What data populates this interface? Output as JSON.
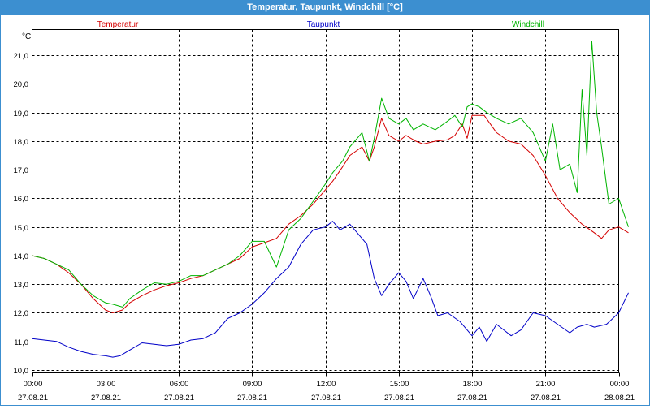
{
  "window": {
    "title": "Temperatur, Taupunkt, Windchill [°C]"
  },
  "chart_data": {
    "type": "line",
    "title": "Temperatur, Taupunkt, Windchill [°C]",
    "ylabel": "°C",
    "ylim": [
      9.9,
      21.9
    ],
    "xlim": [
      0,
      24
    ],
    "grid": true,
    "legend_placement": "top",
    "x_ticks": [
      {
        "time": "00:00",
        "date": "27.08.21",
        "h": 0
      },
      {
        "time": "03:00",
        "date": "27.08.21",
        "h": 3
      },
      {
        "time": "06:00",
        "date": "27.08.21",
        "h": 6
      },
      {
        "time": "09:00",
        "date": "27.08.21",
        "h": 9
      },
      {
        "time": "12:00",
        "date": "27.08.21",
        "h": 12
      },
      {
        "time": "15:00",
        "date": "27.08.21",
        "h": 15
      },
      {
        "time": "18:00",
        "date": "27.08.21",
        "h": 18
      },
      {
        "time": "21:00",
        "date": "27.08.21",
        "h": 21
      },
      {
        "time": "00:00",
        "date": "28.08.21",
        "h": 24
      }
    ],
    "y_ticks": [
      "10,0",
      "11,0",
      "12,0",
      "13,0",
      "14,0",
      "15,0",
      "16,0",
      "17,0",
      "18,0",
      "19,0",
      "20,0",
      "21,0"
    ],
    "series": [
      {
        "name": "Temperatur",
        "color": "#d40000",
        "points": [
          [
            0,
            14.0
          ],
          [
            0.5,
            13.9
          ],
          [
            1,
            13.7
          ],
          [
            1.5,
            13.4
          ],
          [
            2,
            13.0
          ],
          [
            2.5,
            12.5
          ],
          [
            3,
            12.1
          ],
          [
            3.3,
            12.0
          ],
          [
            3.7,
            12.1
          ],
          [
            4,
            12.35
          ],
          [
            4.5,
            12.6
          ],
          [
            5,
            12.8
          ],
          [
            5.5,
            12.95
          ],
          [
            6,
            13.05
          ],
          [
            6.5,
            13.2
          ],
          [
            7,
            13.3
          ],
          [
            7.5,
            13.5
          ],
          [
            8,
            13.7
          ],
          [
            8.5,
            13.9
          ],
          [
            9,
            14.3
          ],
          [
            9.5,
            14.45
          ],
          [
            10,
            14.6
          ],
          [
            10.5,
            15.1
          ],
          [
            11,
            15.4
          ],
          [
            11.5,
            15.8
          ],
          [
            12,
            16.3
          ],
          [
            12.3,
            16.6
          ],
          [
            12.7,
            17.1
          ],
          [
            13,
            17.5
          ],
          [
            13.5,
            17.8
          ],
          [
            13.8,
            17.3
          ],
          [
            14,
            17.8
          ],
          [
            14.3,
            18.8
          ],
          [
            14.6,
            18.2
          ],
          [
            15,
            18.0
          ],
          [
            15.3,
            18.2
          ],
          [
            15.7,
            18.0
          ],
          [
            16,
            17.9
          ],
          [
            16.5,
            18.0
          ],
          [
            17,
            18.05
          ],
          [
            17.3,
            18.2
          ],
          [
            17.6,
            18.6
          ],
          [
            17.8,
            18.1
          ],
          [
            18,
            18.9
          ],
          [
            18.5,
            18.9
          ],
          [
            19,
            18.3
          ],
          [
            19.5,
            18.0
          ],
          [
            20,
            17.9
          ],
          [
            20.5,
            17.5
          ],
          [
            21,
            16.8
          ],
          [
            21.5,
            16.0
          ],
          [
            22,
            15.5
          ],
          [
            22.5,
            15.1
          ],
          [
            23,
            14.8
          ],
          [
            23.3,
            14.6
          ],
          [
            23.6,
            14.9
          ],
          [
            24,
            15.0
          ],
          [
            24.4,
            14.8
          ]
        ]
      },
      {
        "name": "Taupunkt",
        "color": "#0000c8",
        "points": [
          [
            0,
            11.1
          ],
          [
            0.5,
            11.05
          ],
          [
            1,
            11.0
          ],
          [
            1.5,
            10.8
          ],
          [
            2,
            10.65
          ],
          [
            2.5,
            10.55
          ],
          [
            3,
            10.5
          ],
          [
            3.3,
            10.45
          ],
          [
            3.6,
            10.5
          ],
          [
            4,
            10.7
          ],
          [
            4.5,
            10.95
          ],
          [
            5,
            10.9
          ],
          [
            5.5,
            10.85
          ],
          [
            6,
            10.9
          ],
          [
            6.5,
            11.05
          ],
          [
            7,
            11.1
          ],
          [
            7.5,
            11.3
          ],
          [
            8,
            11.8
          ],
          [
            8.5,
            12.0
          ],
          [
            9,
            12.3
          ],
          [
            9.5,
            12.7
          ],
          [
            10,
            13.2
          ],
          [
            10.5,
            13.6
          ],
          [
            11,
            14.4
          ],
          [
            11.5,
            14.9
          ],
          [
            12,
            15.0
          ],
          [
            12.3,
            15.2
          ],
          [
            12.6,
            14.9
          ],
          [
            13,
            15.1
          ],
          [
            13.3,
            14.8
          ],
          [
            13.7,
            14.4
          ],
          [
            14,
            13.2
          ],
          [
            14.3,
            12.6
          ],
          [
            14.6,
            13.0
          ],
          [
            15,
            13.4
          ],
          [
            15.3,
            13.1
          ],
          [
            15.6,
            12.5
          ],
          [
            16,
            13.2
          ],
          [
            16.3,
            12.6
          ],
          [
            16.6,
            11.9
          ],
          [
            17,
            12.0
          ],
          [
            17.5,
            11.7
          ],
          [
            18,
            11.2
          ],
          [
            18.3,
            11.5
          ],
          [
            18.6,
            11.0
          ],
          [
            19,
            11.6
          ],
          [
            19.3,
            11.4
          ],
          [
            19.6,
            11.2
          ],
          [
            20,
            11.4
          ],
          [
            20.5,
            12.0
          ],
          [
            21,
            11.9
          ],
          [
            21.5,
            11.6
          ],
          [
            22,
            11.3
          ],
          [
            22.3,
            11.5
          ],
          [
            22.7,
            11.6
          ],
          [
            23,
            11.5
          ],
          [
            23.5,
            11.6
          ],
          [
            24,
            12.0
          ],
          [
            24.4,
            12.7
          ]
        ]
      },
      {
        "name": "Windchill",
        "color": "#00b400",
        "points": [
          [
            0,
            14.0
          ],
          [
            0.5,
            13.9
          ],
          [
            1,
            13.7
          ],
          [
            1.5,
            13.5
          ],
          [
            2,
            13.0
          ],
          [
            2.5,
            12.6
          ],
          [
            3,
            12.35
          ],
          [
            3.3,
            12.3
          ],
          [
            3.7,
            12.2
          ],
          [
            4,
            12.5
          ],
          [
            4.5,
            12.8
          ],
          [
            5,
            13.05
          ],
          [
            5.5,
            13.0
          ],
          [
            6,
            13.1
          ],
          [
            6.5,
            13.3
          ],
          [
            7,
            13.3
          ],
          [
            7.5,
            13.5
          ],
          [
            8,
            13.7
          ],
          [
            8.5,
            14.0
          ],
          [
            9,
            14.5
          ],
          [
            9.5,
            14.5
          ],
          [
            10,
            13.6
          ],
          [
            10.5,
            14.9
          ],
          [
            11,
            15.3
          ],
          [
            11.5,
            15.9
          ],
          [
            12,
            16.5
          ],
          [
            12.3,
            16.9
          ],
          [
            12.7,
            17.3
          ],
          [
            13,
            17.8
          ],
          [
            13.5,
            18.3
          ],
          [
            13.8,
            17.3
          ],
          [
            14,
            18.1
          ],
          [
            14.3,
            19.5
          ],
          [
            14.6,
            18.8
          ],
          [
            15,
            18.6
          ],
          [
            15.3,
            18.8
          ],
          [
            15.6,
            18.4
          ],
          [
            16,
            18.6
          ],
          [
            16.5,
            18.4
          ],
          [
            17,
            18.7
          ],
          [
            17.3,
            18.9
          ],
          [
            17.6,
            18.5
          ],
          [
            17.8,
            19.2
          ],
          [
            18,
            19.3
          ],
          [
            18.3,
            19.2
          ],
          [
            18.6,
            19.0
          ],
          [
            19,
            18.8
          ],
          [
            19.5,
            18.6
          ],
          [
            20,
            18.8
          ],
          [
            20.5,
            18.3
          ],
          [
            21,
            17.3
          ],
          [
            21.3,
            18.6
          ],
          [
            21.6,
            17.0
          ],
          [
            22,
            17.2
          ],
          [
            22.3,
            16.2
          ],
          [
            22.5,
            19.8
          ],
          [
            22.7,
            17.5
          ],
          [
            22.9,
            21.5
          ],
          [
            23.1,
            19.0
          ],
          [
            23.3,
            17.8
          ],
          [
            23.6,
            15.8
          ],
          [
            24,
            16.0
          ],
          [
            24.4,
            15.0
          ]
        ]
      }
    ]
  }
}
